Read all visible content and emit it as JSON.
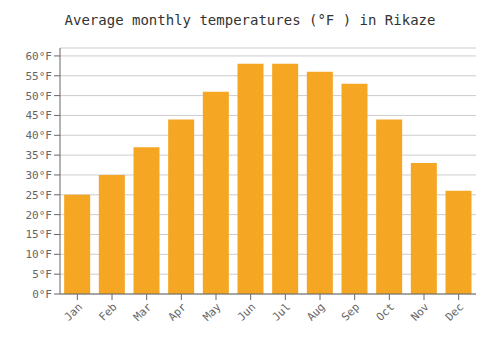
{
  "chart_data": {
    "type": "bar",
    "title": "Average monthly temperatures (°F ) in Rikaze",
    "categories": [
      "Jan",
      "Feb",
      "Mar",
      "Apr",
      "May",
      "Jun",
      "Jul",
      "Aug",
      "Sep",
      "Oct",
      "Nov",
      "Dec"
    ],
    "values": [
      25,
      30,
      37,
      44,
      51,
      58,
      58,
      56,
      53,
      44,
      33,
      26
    ],
    "color": "#F5A623",
    "ylim": [
      0,
      62
    ],
    "yticks": [
      {
        "value": 0,
        "label": "0°F"
      },
      {
        "value": 5,
        "label": "5°F"
      },
      {
        "value": 10,
        "label": "10°F"
      },
      {
        "value": 15,
        "label": "15°F"
      },
      {
        "value": 20,
        "label": "20°F"
      },
      {
        "value": 25,
        "label": "25°F"
      },
      {
        "value": 30,
        "label": "30°F"
      },
      {
        "value": 35,
        "label": "35°F"
      },
      {
        "value": 40,
        "label": "40°F"
      },
      {
        "value": 45,
        "label": "45°F"
      },
      {
        "value": 50,
        "label": "50°F"
      },
      {
        "value": 55,
        "label": "55°F"
      },
      {
        "value": 60,
        "label": "60°F"
      }
    ],
    "grid": true
  }
}
